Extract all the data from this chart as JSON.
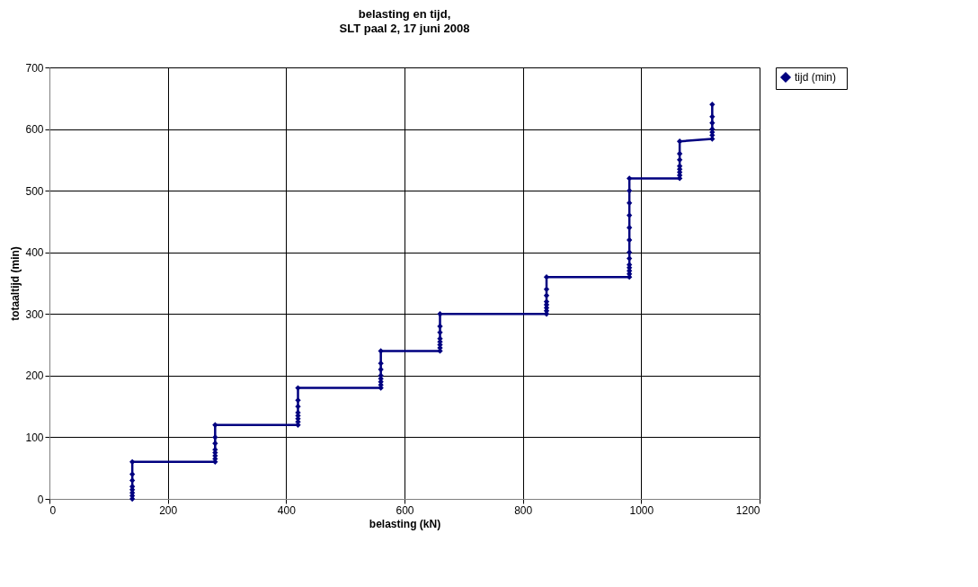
{
  "chart_data": {
    "type": "line",
    "title": "belasting  en tijd,",
    "subtitle": "SLT paal 2, 17 juni 2008",
    "xlabel": "belasting (kN)",
    "ylabel": "totaaltijd (min)",
    "x": [
      140,
      140,
      140,
      140,
      140,
      140,
      140,
      140,
      280,
      280,
      280,
      280,
      280,
      280,
      280,
      280,
      420,
      420,
      420,
      420,
      420,
      420,
      420,
      420,
      560,
      560,
      560,
      560,
      560,
      560,
      560,
      560,
      660,
      660,
      660,
      660,
      660,
      660,
      660,
      660,
      840,
      840,
      840,
      840,
      840,
      840,
      840,
      840,
      980,
      980,
      980,
      980,
      980,
      980,
      980,
      980,
      980,
      980,
      980,
      980,
      980,
      1065,
      1065,
      1065,
      1065,
      1065,
      1065,
      1065,
      1065,
      1120,
      1120,
      1120,
      1120,
      1120,
      1120,
      1120
    ],
    "series": [
      {
        "name": "tijd   (min)",
        "color": "#000080",
        "values": [
          0,
          5,
          10,
          15,
          20,
          30,
          40,
          60,
          60,
          65,
          70,
          75,
          80,
          90,
          100,
          120,
          120,
          125,
          130,
          135,
          140,
          150,
          160,
          180,
          180,
          185,
          190,
          195,
          200,
          210,
          220,
          240,
          240,
          245,
          250,
          255,
          260,
          270,
          280,
          300,
          300,
          305,
          310,
          315,
          320,
          330,
          340,
          360,
          360,
          365,
          370,
          375,
          380,
          390,
          400,
          420,
          440,
          460,
          480,
          500,
          520,
          520,
          525,
          530,
          535,
          540,
          550,
          560,
          580,
          584,
          590,
          595,
          600,
          610,
          620,
          640
        ]
      }
    ],
    "xlim": [
      0,
      1200
    ],
    "xticks": [
      0,
      200,
      400,
      600,
      800,
      1000,
      1200
    ],
    "ylim": [
      0,
      700
    ],
    "yticks": [
      0,
      100,
      200,
      300,
      400,
      500,
      600,
      700
    ],
    "grid": true,
    "legend": "right",
    "marker": "diamond",
    "line_style": "solid"
  }
}
